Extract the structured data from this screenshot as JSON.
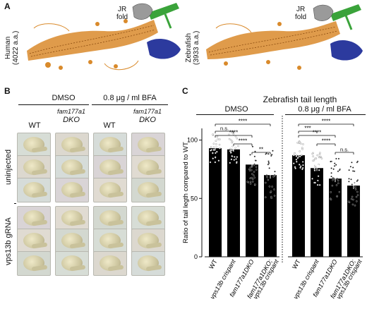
{
  "panel_a": {
    "letter": "A",
    "human_label_line1": "Human",
    "human_label_line2": "(4022 a.a.)",
    "zebrafish_label_line1": "Zebrafish",
    "zebrafish_label_line2": "(3933 a.a.)",
    "jr_fold_line1": "JR",
    "jr_fold_line2": "fold"
  },
  "panel_b": {
    "letter": "B",
    "treatment_dmso": "DMSO",
    "treatment_bfa": "0.8 μg / ml BFA",
    "col_wt": "WT",
    "col_dko_line1": "fam177a1",
    "col_dko_line2": "DKO",
    "row_uninjected": "uninjected",
    "row_gRNA": "vps13b gRNA"
  },
  "panel_c": {
    "letter": "C",
    "title": "Zebrafish tail length",
    "group_dmso": "DMSO",
    "group_bfa": "0.8 μg / ml BFA"
  },
  "chart_data": {
    "type": "bar",
    "title": "Zebrafish tail length",
    "ylabel": "Ratio of tail legth compared to WT",
    "ylim": [
      0,
      110
    ],
    "yticks": [
      0,
      50,
      100
    ],
    "categories": [
      "WT",
      "vps13b crispant",
      "fam177a1DKO",
      "fam177a1DKO; vps13b crispant"
    ],
    "series": [
      {
        "name": "DMSO",
        "values": [
          93,
          92,
          79,
          70
        ],
        "errors": [
          2,
          2,
          2.5,
          3
        ]
      },
      {
        "name": "0.8 μg / ml BFA",
        "values": [
          87,
          76,
          67,
          61
        ],
        "errors": [
          2,
          2.5,
          3,
          3
        ]
      }
    ],
    "significance": [
      {
        "group": "DMSO",
        "pairs": [
          {
            "a": 0,
            "b": 1,
            "label": "n.s."
          },
          {
            "a": 0,
            "b": 2,
            "label": "****"
          },
          {
            "a": 1,
            "b": 2,
            "label": "****"
          },
          {
            "a": 2,
            "b": 3,
            "label": "**"
          },
          {
            "a": 0,
            "b": 3,
            "label": "****"
          }
        ]
      },
      {
        "group": "0.8 μg / ml BFA",
        "pairs": [
          {
            "a": 0,
            "b": 1,
            "label": "***"
          },
          {
            "a": 0,
            "b": 2,
            "label": "****"
          },
          {
            "a": 1,
            "b": 2,
            "label": "****"
          },
          {
            "a": 2,
            "b": 3,
            "label": "n.s."
          },
          {
            "a": 0,
            "b": 3,
            "label": "****"
          }
        ]
      }
    ],
    "legend": "none",
    "grid": false
  },
  "colors": {
    "protein_orange": "#d98a2b",
    "protein_blue": "#2c3a9e",
    "protein_green": "#3aa33a",
    "protein_gray": "#9a9a9a",
    "bar_fill": "#000000",
    "point_fill": "#ffffff"
  }
}
